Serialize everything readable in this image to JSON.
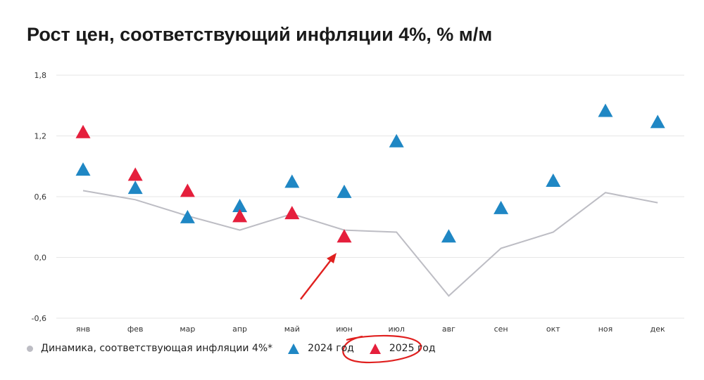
{
  "title": "Рост цен, соответствующий инфляции 4%, % м/м",
  "chart_data": {
    "type": "scatter",
    "categories": [
      "янв",
      "фев",
      "мар",
      "апр",
      "май",
      "июн",
      "июл",
      "авг",
      "сен",
      "окт",
      "ноя",
      "дек"
    ],
    "ylim": [
      -0.6,
      1.8
    ],
    "yticks": [
      1.8,
      1.2,
      0.6,
      0.0,
      -0.6
    ],
    "ytick_labels": [
      "1,8",
      "1,2",
      "0,6",
      "0,0",
      "-0,6"
    ],
    "grid": true,
    "legend_position": "bottom-left",
    "series": [
      {
        "name": "Динамика, соответствующая инфляции 4%*",
        "kind": "line",
        "color": "#bdbdc4",
        "values": [
          0.66,
          0.57,
          0.41,
          0.27,
          0.43,
          0.27,
          0.25,
          -0.38,
          0.09,
          0.25,
          0.64,
          0.54
        ]
      },
      {
        "name": "2024 год",
        "kind": "triangle",
        "color": "#1f87c4",
        "values": [
          0.86,
          0.68,
          0.39,
          0.5,
          0.74,
          0.64,
          1.14,
          0.2,
          0.48,
          0.75,
          1.44,
          1.33
        ]
      },
      {
        "name": "2025 год",
        "kind": "triangle",
        "color": "#e51f3c",
        "values": [
          1.23,
          0.81,
          0.65,
          0.4,
          0.43,
          0.2,
          null,
          null,
          null,
          null,
          null,
          null
        ]
      }
    ]
  },
  "annotations": {
    "arrow_color": "#e0201f",
    "circle_color": "#e0201f"
  }
}
